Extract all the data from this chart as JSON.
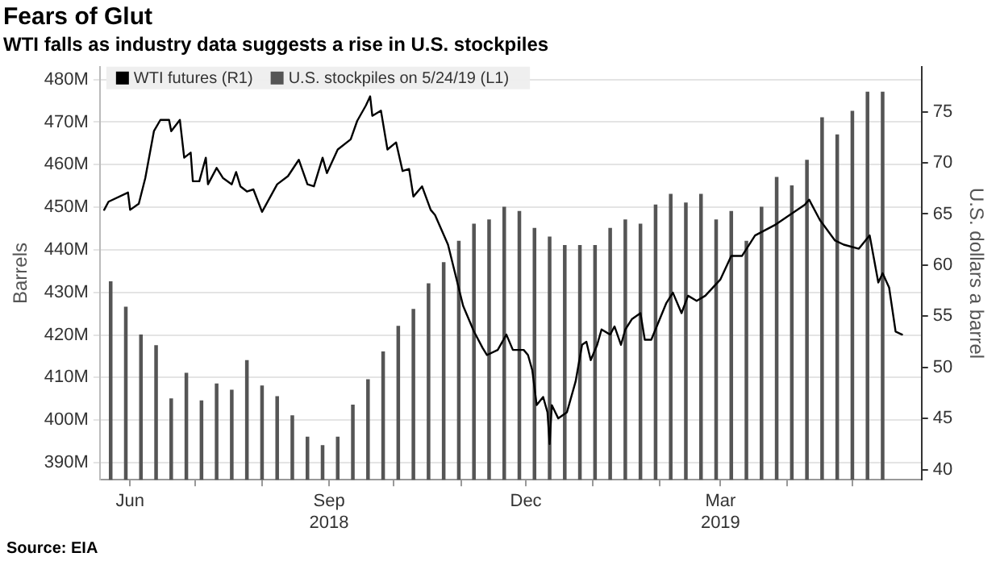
{
  "chart_data": {
    "type": "bar",
    "title": "Fears of Glut",
    "subtitle": "WTI falls as industry data suggests a rise in U.S. stockpiles",
    "ylabel": "Barrels",
    "y2label": "U.S. dollars a barrel",
    "annotations": [
      "Source: EIA"
    ],
    "legend": "top left",
    "grid": "y",
    "xlim": [
      "2018-05-18",
      "2019-06-02"
    ],
    "xticks": [
      {
        "value": "2018-06-01",
        "label": "Jun"
      },
      {
        "value": "2018-07-01",
        "label": null
      },
      {
        "value": "2018-08-01",
        "label": null
      },
      {
        "value": "2018-09-01",
        "label": "Sep\n2018"
      },
      {
        "value": "2018-10-01",
        "label": null
      },
      {
        "value": "2018-11-01",
        "label": null
      },
      {
        "value": "2018-12-01",
        "label": "Dec"
      },
      {
        "value": "2019-01-01",
        "label": null
      },
      {
        "value": "2019-02-01",
        "label": null
      },
      {
        "value": "2019-03-01",
        "label": "Mar\n2019"
      },
      {
        "value": "2019-04-01",
        "label": null
      },
      {
        "value": "2019-05-01",
        "label": null
      }
    ],
    "ylim": [
      386,
      483
    ],
    "yticks": [
      {
        "value": 390,
        "label": "390M"
      },
      {
        "value": 400,
        "label": "400M"
      },
      {
        "value": 410,
        "label": "410M"
      },
      {
        "value": 420,
        "label": "420M"
      },
      {
        "value": 430,
        "label": "430M"
      },
      {
        "value": 440,
        "label": "440M"
      },
      {
        "value": 450,
        "label": "450M"
      },
      {
        "value": 460,
        "label": "460M"
      },
      {
        "value": 470,
        "label": "470M"
      },
      {
        "value": 480,
        "label": "480M"
      }
    ],
    "y2lim": [
      39,
      79.4
    ],
    "y2ticks": [
      40,
      45,
      50,
      55,
      60,
      65,
      70,
      75
    ],
    "series": [
      {
        "name": "WTI futures (R1)",
        "type": "line",
        "axis": "y2",
        "color": "#000000",
        "x": [
          "2018-05-20",
          "2018-05-22",
          "2018-05-31",
          "2018-06-01",
          "2018-06-05",
          "2018-06-08",
          "2018-06-12",
          "2018-06-15",
          "2018-06-19",
          "2018-06-20",
          "2018-06-24",
          "2018-06-26",
          "2018-06-29",
          "2018-06-30",
          "2018-07-03",
          "2018-07-06",
          "2018-07-07",
          "2018-07-11",
          "2018-07-14",
          "2018-07-18",
          "2018-07-20",
          "2018-07-22",
          "2018-07-25",
          "2018-07-28",
          "2018-08-01",
          "2018-08-08",
          "2018-08-13",
          "2018-08-18",
          "2018-08-22",
          "2018-08-25",
          "2018-08-29",
          "2018-08-31",
          "2018-09-05",
          "2018-09-11",
          "2018-09-14",
          "2018-09-18",
          "2018-09-20",
          "2018-09-21",
          "2018-09-25",
          "2018-09-28",
          "2018-10-02",
          "2018-10-05",
          "2018-10-08",
          "2018-10-10",
          "2018-10-14",
          "2018-10-18",
          "2018-10-20",
          "2018-10-26",
          "2018-11-02",
          "2018-11-07",
          "2018-11-11",
          "2018-11-13",
          "2018-11-18",
          "2018-11-22",
          "2018-11-25",
          "2018-11-30",
          "2018-12-02",
          "2018-12-04",
          "2018-12-06",
          "2018-12-09",
          "2018-12-11",
          "2018-12-12",
          "2018-12-13",
          "2018-12-16",
          "2018-12-20",
          "2018-12-24",
          "2018-12-27",
          "2018-12-29",
          "2018-12-31",
          "2019-01-03",
          "2019-01-05",
          "2019-01-09",
          "2019-01-11",
          "2019-01-14",
          "2019-01-16",
          "2019-01-19",
          "2019-01-23",
          "2019-01-25",
          "2019-01-28",
          "2019-02-04",
          "2019-02-07",
          "2019-02-11",
          "2019-02-14",
          "2019-02-18",
          "2019-02-22",
          "2019-03-01",
          "2019-03-06",
          "2019-03-11",
          "2019-03-17",
          "2019-03-26",
          "2019-04-02",
          "2019-04-09",
          "2019-04-11",
          "2019-04-16",
          "2019-04-23",
          "2019-04-27",
          "2019-05-04",
          "2019-05-09",
          "2019-05-13",
          "2019-05-15",
          "2019-05-18",
          "2019-05-21",
          "2019-05-24"
        ],
        "values": [
          65.4,
          66.2,
          67.1,
          65.4,
          66,
          68.5,
          73.1,
          74.2,
          74.2,
          73.1,
          74.2,
          70.5,
          71,
          68.2,
          68.2,
          70.5,
          67.9,
          69.5,
          68.5,
          67.9,
          69.1,
          67.7,
          67.2,
          67.4,
          65.2,
          67.9,
          68.7,
          70.3,
          67.9,
          67.7,
          70.5,
          69,
          71.3,
          72.3,
          74.1,
          75.6,
          76.5,
          74.6,
          75.1,
          71.3,
          72,
          69.2,
          69.4,
          66.7,
          67.7,
          65.4,
          64.9,
          62,
          56,
          53.5,
          51.9,
          51.2,
          51.7,
          53.2,
          51.7,
          51.7,
          51.2,
          49.7,
          46.3,
          47.1,
          45.6,
          42.5,
          46.3,
          45,
          45.6,
          48.6,
          52.2,
          52.5,
          50.7,
          52.2,
          53.7,
          53.2,
          54,
          52.2,
          53.7,
          54.7,
          55.3,
          52.7,
          52.7,
          56.3,
          57.3,
          55.3,
          57,
          56.5,
          57,
          58.6,
          60.9,
          60.9,
          62.9,
          63.9,
          64.9,
          65.9,
          66.4,
          64.4,
          62.4,
          62,
          61.6,
          62.9,
          58.3,
          59.2,
          57.8,
          53.5,
          53.2
        ]
      },
      {
        "name": "U.S. stockpiles on 5/24/19 (L1)",
        "axis": "y",
        "color": "#555555",
        "x": [
          "2018-05-23",
          "2018-05-30",
          "2018-06-06",
          "2018-06-13",
          "2018-06-20",
          "2018-06-27",
          "2018-07-04",
          "2018-07-11",
          "2018-07-18",
          "2018-07-25",
          "2018-08-01",
          "2018-08-08",
          "2018-08-15",
          "2018-08-22",
          "2018-08-29",
          "2018-09-05",
          "2018-09-12",
          "2018-09-19",
          "2018-09-26",
          "2018-10-03",
          "2018-10-10",
          "2018-10-17",
          "2018-10-24",
          "2018-10-31",
          "2018-11-07",
          "2018-11-14",
          "2018-11-21",
          "2018-11-28",
          "2018-12-05",
          "2018-12-12",
          "2018-12-19",
          "2018-12-26",
          "2019-01-02",
          "2019-01-09",
          "2019-01-16",
          "2019-01-23",
          "2019-01-30",
          "2019-02-06",
          "2019-02-13",
          "2019-02-20",
          "2019-02-27",
          "2019-03-06",
          "2019-03-13",
          "2019-03-20",
          "2019-03-27",
          "2019-04-03",
          "2019-04-10",
          "2019-04-17",
          "2019-04-24",
          "2019-05-01",
          "2019-05-08",
          "2019-05-15"
        ],
        "values": [
          432.5,
          426.5,
          420,
          417.5,
          405,
          411,
          404.5,
          408.5,
          407,
          414,
          408,
          405.5,
          401,
          396,
          394,
          396,
          403.5,
          409.5,
          416,
          422,
          426,
          432,
          437,
          442,
          446,
          447,
          450,
          449,
          445,
          443,
          441,
          441,
          441,
          445,
          447,
          446,
          450.5,
          453,
          451,
          453,
          447,
          449,
          442,
          450,
          457,
          455,
          461,
          471,
          467,
          472.5,
          477,
          477
        ]
      }
    ]
  }
}
